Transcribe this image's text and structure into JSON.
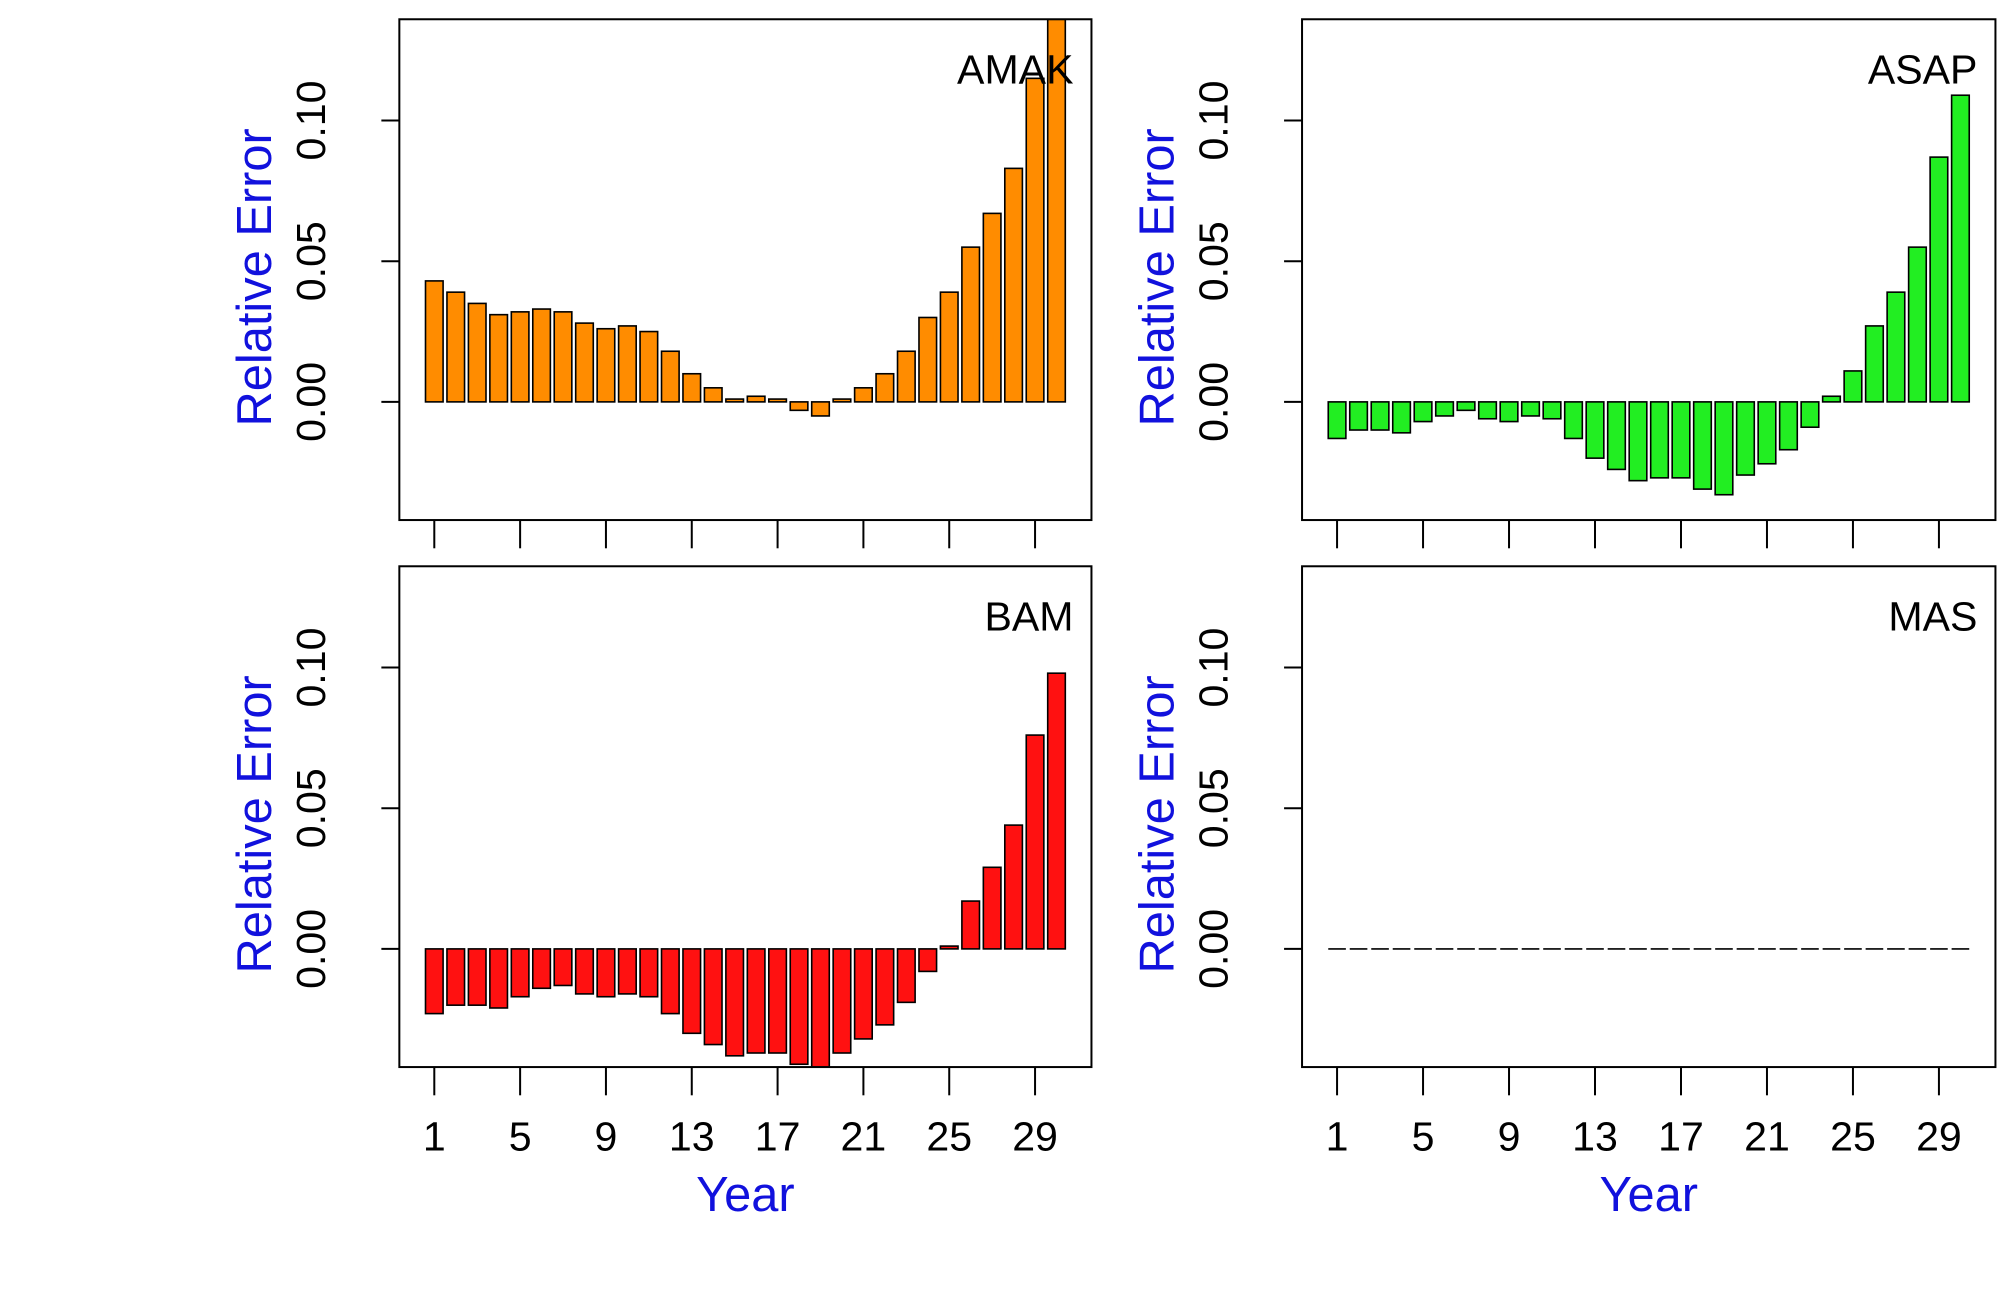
{
  "chart_data": [
    {
      "type": "bar",
      "title": "AMAK",
      "xlabel": "",
      "ylabel": "Relative Error",
      "bar_color": "#FF8C00",
      "ylim": [
        -0.042,
        0.136
      ],
      "yticks": [
        "0.00",
        "0.05",
        "0.10"
      ],
      "ytick_values": [
        0.0,
        0.05,
        0.1
      ],
      "xticks": [
        "1",
        "5",
        "9",
        "13",
        "17",
        "21",
        "25",
        "29"
      ],
      "categories": [
        1,
        2,
        3,
        4,
        5,
        6,
        7,
        8,
        9,
        10,
        11,
        12,
        13,
        14,
        15,
        16,
        17,
        18,
        19,
        20,
        21,
        22,
        23,
        24,
        25,
        26,
        27,
        28,
        29,
        30
      ],
      "values": [
        0.043,
        0.039,
        0.035,
        0.031,
        0.032,
        0.033,
        0.032,
        0.028,
        0.026,
        0.027,
        0.025,
        0.018,
        0.01,
        0.005,
        0.001,
        0.002,
        0.001,
        -0.003,
        -0.005,
        0.001,
        0.005,
        0.01,
        0.018,
        0.03,
        0.039,
        0.055,
        0.067,
        0.083,
        0.115,
        0.136
      ]
    },
    {
      "type": "bar",
      "title": "ASAP",
      "xlabel": "",
      "ylabel": "Relative Error",
      "bar_color": "#22EE22",
      "ylim": [
        -0.042,
        0.136
      ],
      "yticks": [
        "0.00",
        "0.05",
        "0.10"
      ],
      "ytick_values": [
        0.0,
        0.05,
        0.1
      ],
      "xticks": [
        "1",
        "5",
        "9",
        "13",
        "17",
        "21",
        "25",
        "29"
      ],
      "categories": [
        1,
        2,
        3,
        4,
        5,
        6,
        7,
        8,
        9,
        10,
        11,
        12,
        13,
        14,
        15,
        16,
        17,
        18,
        19,
        20,
        21,
        22,
        23,
        24,
        25,
        26,
        27,
        28,
        29,
        30
      ],
      "values": [
        -0.013,
        -0.01,
        -0.01,
        -0.011,
        -0.007,
        -0.005,
        -0.003,
        -0.006,
        -0.007,
        -0.005,
        -0.006,
        -0.013,
        -0.02,
        -0.024,
        -0.028,
        -0.027,
        -0.027,
        -0.031,
        -0.033,
        -0.026,
        -0.022,
        -0.017,
        -0.009,
        0.002,
        0.011,
        0.027,
        0.039,
        0.055,
        0.087,
        0.109
      ]
    },
    {
      "type": "bar",
      "title": "BAM",
      "xlabel": "Year",
      "ylabel": "Relative Error",
      "bar_color": "#FF1111",
      "ylim": [
        -0.042,
        0.136
      ],
      "yticks": [
        "0.00",
        "0.05",
        "0.10"
      ],
      "ytick_values": [
        0.0,
        0.05,
        0.1
      ],
      "xticks": [
        "1",
        "5",
        "9",
        "13",
        "17",
        "21",
        "25",
        "29"
      ],
      "categories": [
        1,
        2,
        3,
        4,
        5,
        6,
        7,
        8,
        9,
        10,
        11,
        12,
        13,
        14,
        15,
        16,
        17,
        18,
        19,
        20,
        21,
        22,
        23,
        24,
        25,
        26,
        27,
        28,
        29,
        30
      ],
      "values": [
        -0.023,
        -0.02,
        -0.02,
        -0.021,
        -0.017,
        -0.014,
        -0.013,
        -0.016,
        -0.017,
        -0.016,
        -0.017,
        -0.023,
        -0.03,
        -0.034,
        -0.038,
        -0.037,
        -0.037,
        -0.041,
        -0.042,
        -0.037,
        -0.032,
        -0.027,
        -0.019,
        -0.008,
        0.001,
        0.017,
        0.029,
        0.044,
        0.076,
        0.098
      ]
    },
    {
      "type": "bar",
      "title": "MAS",
      "xlabel": "Year",
      "ylabel": "Relative Error",
      "bar_color": "#000000",
      "ylim": [
        -0.042,
        0.136
      ],
      "yticks": [
        "0.00",
        "0.05",
        "0.10"
      ],
      "ytick_values": [
        0.0,
        0.05,
        0.1
      ],
      "xticks": [
        "1",
        "5",
        "9",
        "13",
        "17",
        "21",
        "25",
        "29"
      ],
      "categories": [
        1,
        2,
        3,
        4,
        5,
        6,
        7,
        8,
        9,
        10,
        11,
        12,
        13,
        14,
        15,
        16,
        17,
        18,
        19,
        20,
        21,
        22,
        23,
        24,
        25,
        26,
        27,
        28,
        29,
        30
      ],
      "values": [
        0,
        0,
        0,
        0,
        0,
        0,
        0,
        0,
        0,
        0,
        0,
        0,
        0,
        0,
        0,
        0,
        0,
        0,
        0,
        0,
        0,
        0,
        0,
        0,
        0,
        0,
        0,
        0,
        0,
        0
      ]
    }
  ],
  "colors": {
    "label_blue": "#1111DD",
    "axis": "#000000"
  }
}
